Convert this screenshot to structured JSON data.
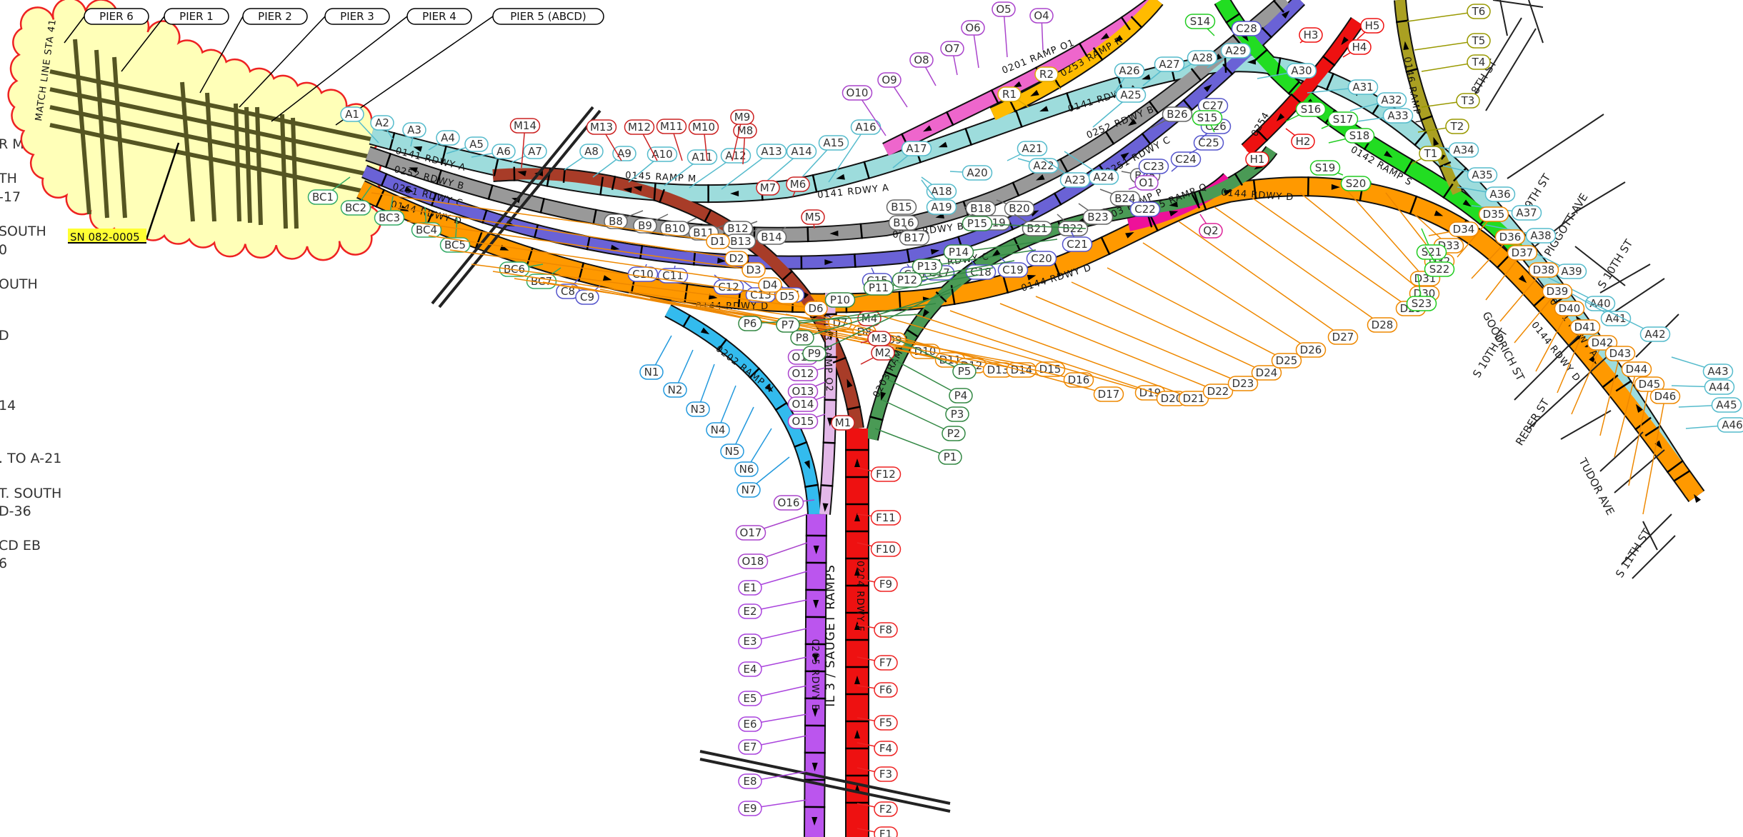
{
  "colors": {
    "rdwy_a": "#9ddcdc",
    "rdwy_b": "#999999",
    "rdwy_c": "#6a62d6",
    "rdwy_d": "#ff9900",
    "ramp_m": "#a83c28",
    "ramp_n": "#33bbee",
    "ramp_o2": "#e3b8e8",
    "ramp_p": "#4a9a55",
    "rdwy_e": "#bb55ee",
    "rdwy_f": "#ee1111",
    "ramp_o1": "#ee66cc",
    "ramp_r": "#ffbb00",
    "ramp_s": "#22dd22",
    "ramp_q": "#ee1199",
    "ramp_t": "#aaa022",
    "cloud_fill": "#ffffb8",
    "cloud_edge": "#ee2222"
  },
  "left_notes": [
    "R M-14 TO A-5",
    "TH",
    "-17",
    "SOUTH",
    "0",
    "OUTH",
    "D",
    "14",
    ". TO A-21",
    "T. SOUTH",
    "D-36",
    "CD EB",
    "6"
  ],
  "match_line": "MATCH LINE STA 41",
  "piers": [
    "PIER 6",
    "PIER 1",
    "PIER 2",
    "PIER 3",
    "PIER 4",
    "PIER 5 (ABCD)"
  ],
  "structure_number": "SN 082-0005",
  "roadway_labels": {
    "a_left": "0141 RDWY A",
    "b_left": "0252 RDWY B",
    "c_left": "0251 RDWY C",
    "d_left": "0144 RDWY D",
    "m": "0145 RAMP M",
    "a_mid": "0141 RDWY A",
    "b_mid": "0252 RDWY B",
    "c_mid": "0251 RDWY C",
    "d_mid": "0144 RDWY D",
    "d_mid2": "0144 RDWY D",
    "d_right": "0144 RDWY D",
    "n": "0202 RAMP N",
    "o2": "0143 RAMP O2",
    "p": "0203 RAMP P",
    "e": "0205 RDWY E",
    "f": "0204 RDWY F",
    "saugget": "IL 3 / SAUGET RAMPS",
    "o1": "0201 RAMP O1",
    "r": "0253 RAMP R",
    "a_top": "0141 RDWY A",
    "b_top": "0252 RDWY B",
    "c_top": "0251 RDWY C",
    "p_top": "0203 RAMP P",
    "q": "0255 RAMP Q",
    "s": "0142 RAMP S",
    "t": "0146 RAMP T",
    "a_right": "0141 RDWY A",
    "d_far": "0144 RDWY D",
    "r_vert": "RAMP R",
    "m_vert": "0145 RAMP M",
    "h_lbl": "0254"
  },
  "streets": [
    "S 8TH ST",
    "S 9TH ST",
    "PIGGOTT AVE",
    "S 10TH ST",
    "GOODRICH ST",
    "S 10TH ST",
    "REBER ST",
    "TUDOR AVE",
    "S 11TH ST"
  ],
  "pier_labels": {
    "A": [
      "A1",
      "A2",
      "A3",
      "A4",
      "A5",
      "A6",
      "A7",
      "A8",
      "A9",
      "A10",
      "A11",
      "A12",
      "A13",
      "A14",
      "A15",
      "A16",
      "A17",
      "A18",
      "A19",
      "A20",
      "A21",
      "A22",
      "A23",
      "A24",
      "A25",
      "A26",
      "A27",
      "A28",
      "A29",
      "A30",
      "A31",
      "A32",
      "A33",
      "A34",
      "A35",
      "A36",
      "A37",
      "A38",
      "A39",
      "A40",
      "A41",
      "A42",
      "A43",
      "A44",
      "A45",
      "A46"
    ],
    "B": [
      "B8",
      "B9",
      "B10",
      "B11",
      "B12",
      "B13",
      "B14",
      "B15",
      "B16",
      "B17",
      "B18",
      "B19",
      "B20",
      "B21",
      "B22",
      "B23",
      "B24",
      "B25",
      "B26"
    ],
    "BC": [
      "BC1",
      "BC2",
      "BC3",
      "BC4",
      "BC5",
      "BC6",
      "BC7"
    ],
    "C": [
      "C8",
      "C9",
      "C10",
      "C11",
      "C12",
      "C13",
      "C14",
      "C15",
      "C16",
      "C17",
      "C18",
      "C19",
      "C20",
      "C21",
      "C22",
      "C23",
      "C24",
      "C25",
      "C26",
      "C27",
      "C28"
    ],
    "D": [
      "D1",
      "D2",
      "D3",
      "D4",
      "D5",
      "D6",
      "D7",
      "D8",
      "D9",
      "D10",
      "D11",
      "D12",
      "D13",
      "D14",
      "D15",
      "D16",
      "D17",
      "D19",
      "D20",
      "D21",
      "D22",
      "D23",
      "D24",
      "D25",
      "D26",
      "D27",
      "D28",
      "D29",
      "D30",
      "D31",
      "D32",
      "D33",
      "D34",
      "D35",
      "D36",
      "D37",
      "D38",
      "D39",
      "D40",
      "D41",
      "D42",
      "D43",
      "D44",
      "D45",
      "D46"
    ],
    "M": [
      "M1",
      "M2",
      "M3",
      "M4",
      "M5",
      "M6",
      "M7",
      "M8",
      "M9",
      "M10",
      "M11",
      "M12",
      "M13",
      "M14"
    ],
    "N": [
      "N1",
      "N2",
      "N3",
      "N4",
      "N5",
      "N6",
      "N7"
    ],
    "O": [
      "O1",
      "O4",
      "O5",
      "O6",
      "O7",
      "O8",
      "O9",
      "O10",
      "O11",
      "O12",
      "O13",
      "O14",
      "O15",
      "O16",
      "O17",
      "O18"
    ],
    "P": [
      "P1",
      "P2",
      "P3",
      "P4",
      "P5",
      "P6",
      "P7",
      "P8",
      "P9",
      "P10",
      "P11",
      "P12",
      "P13",
      "P14",
      "P15"
    ],
    "E": [
      "E1",
      "E2",
      "E3",
      "E4",
      "E5",
      "E6",
      "E7",
      "E8",
      "E9"
    ],
    "F": [
      "F1",
      "F2",
      "F3",
      "F4",
      "F5",
      "F6",
      "F7",
      "F8",
      "F9",
      "F10",
      "F11",
      "F12"
    ],
    "R": [
      "R1",
      "R2"
    ],
    "S": [
      "S14",
      "S15",
      "S16",
      "S17",
      "S18",
      "S19",
      "S20",
      "S21",
      "S22",
      "S23"
    ],
    "H": [
      "H1",
      "H2",
      "H3",
      "H4",
      "H5"
    ],
    "Q": [
      "Q2"
    ],
    "T": [
      "T1",
      "T2",
      "T3",
      "T4",
      "T5",
      "T6"
    ]
  }
}
